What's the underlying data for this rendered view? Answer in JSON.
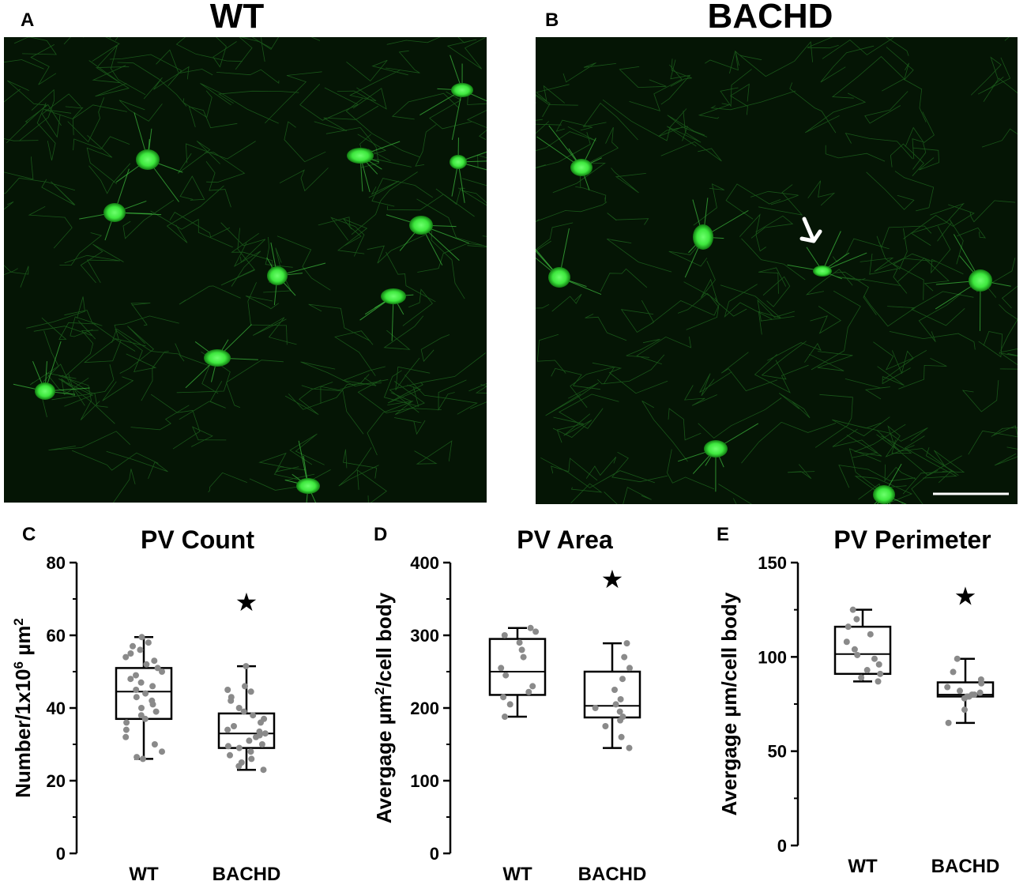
{
  "panels": {
    "a": {
      "letter": "A",
      "title": "WT"
    },
    "b": {
      "letter": "B",
      "title": "BACHD"
    },
    "c": {
      "letter": "C"
    },
    "d": {
      "letter": "D"
    },
    "e": {
      "letter": "E"
    }
  },
  "colors": {
    "tissue_background": "#051505",
    "cell_body": "#3ee83e",
    "fiber": "#2a8a2a",
    "arrow": "#ffffff",
    "scale_bar": "#ffffff",
    "data_point": "#8a8a8a",
    "significance_star": "#000000"
  },
  "chart_data": [
    {
      "type": "box",
      "title": "PV Count",
      "ylabel_parts": {
        "pre": "Number/1x10",
        "sup1": "6",
        "mid": " µm",
        "sup2": "2",
        "post": ""
      },
      "categories": [
        "WT",
        "BACHD"
      ],
      "ylim": [
        0,
        80
      ],
      "yticks": [
        0,
        20,
        40,
        60,
        80
      ],
      "boxes": [
        {
          "min": 26,
          "q1": 37,
          "median": 44.5,
          "q3": 51,
          "max": 59.5,
          "points": [
            59.5,
            58,
            57,
            56,
            55,
            54,
            53,
            52,
            51,
            50,
            49,
            48,
            47,
            46,
            45,
            44,
            43,
            42,
            41,
            40,
            39,
            38,
            37,
            36,
            34,
            32,
            30,
            28,
            26.5,
            26
          ]
        },
        {
          "min": 23,
          "q1": 29,
          "median": 33,
          "q3": 38.5,
          "max": 51.5,
          "points": [
            51.5,
            46,
            45,
            44.5,
            43,
            42,
            40,
            39,
            38,
            37,
            36,
            35,
            34,
            33.5,
            33,
            32.5,
            32,
            31,
            30,
            29.5,
            29,
            28,
            27,
            26,
            25,
            24,
            23
          ]
        }
      ],
      "significance": "★",
      "significant_category": "BACHD"
    },
    {
      "type": "box",
      "title": "PV Area",
      "ylabel_parts": {
        "pre": "Avergage ",
        "sup1": "",
        "mid": "µm",
        "sup2": "2",
        "post": "/cell body"
      },
      "categories": [
        "WT",
        "BACHD"
      ],
      "ylim": [
        0,
        400
      ],
      "yticks": [
        0,
        100,
        200,
        300,
        400
      ],
      "boxes": [
        {
          "min": 188,
          "q1": 218,
          "median": 250,
          "q3": 295,
          "max": 310,
          "points": [
            310,
            305,
            300,
            290,
            280,
            270,
            255,
            245,
            230,
            222,
            215,
            205,
            188
          ]
        },
        {
          "min": 145,
          "q1": 187,
          "median": 203,
          "q3": 250,
          "max": 289,
          "points": [
            289,
            270,
            255,
            240,
            225,
            212,
            205,
            200,
            195,
            188,
            183,
            175,
            160,
            145
          ]
        }
      ],
      "significance": "★",
      "significant_category": "BACHD"
    },
    {
      "type": "box",
      "title": "PV Perimeter",
      "ylabel_parts": {
        "pre": "Avergage ",
        "sup1": "",
        "mid": "µm/cell body",
        "sup2": "",
        "post": ""
      },
      "categories": [
        "WT",
        "BACHD"
      ],
      "ylim": [
        0,
        150
      ],
      "yticks": [
        0,
        50,
        100,
        150
      ],
      "boxes": [
        {
          "min": 87,
          "q1": 91,
          "median": 101.5,
          "q3": 116,
          "max": 125,
          "points": [
            125,
            120,
            116,
            112,
            108,
            104,
            101,
            99,
            96,
            93,
            91,
            89,
            87
          ]
        },
        {
          "min": 65,
          "q1": 79,
          "median": 80,
          "q3": 86.5,
          "max": 99,
          "points": [
            99,
            92,
            88,
            86,
            84,
            82,
            81,
            80,
            80,
            79,
            79,
            78,
            72,
            65
          ]
        }
      ],
      "significance": "★",
      "significant_category": "BACHD"
    }
  ]
}
